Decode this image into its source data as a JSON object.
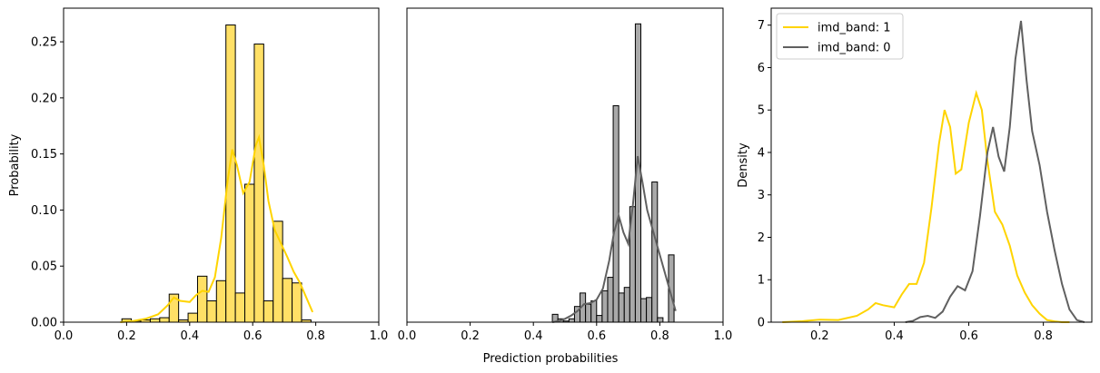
{
  "figure": {
    "xlabel": "Prediction probabilities"
  },
  "colors": {
    "band1_fill": "#ffe066",
    "band1_line": "#ffd400",
    "band0_fill": "#a9a9a9",
    "band0_line": "#606060",
    "edge": "#000000"
  },
  "chart_data": [
    {
      "type": "bar",
      "subtype": "histogram_with_kde",
      "series_name": "imd_band: 1",
      "ylabel": "Probability",
      "xlim": [
        0,
        1
      ],
      "ylim": [
        0,
        0.28
      ],
      "xticks": [
        "0.0",
        "0.2",
        "0.4",
        "0.6",
        "0.8",
        "1.0"
      ],
      "xtick_values": [
        0,
        0.2,
        0.4,
        0.6,
        0.8,
        1.0
      ],
      "yticks": [
        "0.00",
        "0.05",
        "0.10",
        "0.15",
        "0.20",
        "0.25"
      ],
      "ytick_values": [
        0,
        0.05,
        0.1,
        0.15,
        0.2,
        0.25
      ],
      "bins": [
        {
          "x0": 0.185,
          "x1": 0.215,
          "y": 0.003
        },
        {
          "x0": 0.215,
          "x1": 0.245,
          "y": 0.001
        },
        {
          "x0": 0.245,
          "x1": 0.275,
          "y": 0.002
        },
        {
          "x0": 0.275,
          "x1": 0.305,
          "y": 0.003
        },
        {
          "x0": 0.305,
          "x1": 0.335,
          "y": 0.004
        },
        {
          "x0": 0.335,
          "x1": 0.365,
          "y": 0.025
        },
        {
          "x0": 0.365,
          "x1": 0.395,
          "y": 0.002
        },
        {
          "x0": 0.395,
          "x1": 0.425,
          "y": 0.008
        },
        {
          "x0": 0.425,
          "x1": 0.455,
          "y": 0.041
        },
        {
          "x0": 0.455,
          "x1": 0.485,
          "y": 0.019
        },
        {
          "x0": 0.485,
          "x1": 0.515,
          "y": 0.037
        },
        {
          "x0": 0.515,
          "x1": 0.545,
          "y": 0.265
        },
        {
          "x0": 0.545,
          "x1": 0.575,
          "y": 0.026
        },
        {
          "x0": 0.575,
          "x1": 0.605,
          "y": 0.123
        },
        {
          "x0": 0.605,
          "x1": 0.635,
          "y": 0.248
        },
        {
          "x0": 0.635,
          "x1": 0.665,
          "y": 0.019
        },
        {
          "x0": 0.665,
          "x1": 0.695,
          "y": 0.09
        },
        {
          "x0": 0.695,
          "x1": 0.725,
          "y": 0.039
        },
        {
          "x0": 0.725,
          "x1": 0.755,
          "y": 0.035
        },
        {
          "x0": 0.755,
          "x1": 0.785,
          "y": 0.002
        }
      ],
      "kde": {
        "x": [
          0.18,
          0.22,
          0.26,
          0.3,
          0.33,
          0.35,
          0.37,
          0.4,
          0.42,
          0.44,
          0.46,
          0.48,
          0.5,
          0.52,
          0.535,
          0.55,
          0.57,
          0.59,
          0.61,
          0.62,
          0.635,
          0.65,
          0.67,
          0.69,
          0.71,
          0.73,
          0.75,
          0.77,
          0.79
        ],
        "y": [
          0.0,
          0.001,
          0.003,
          0.007,
          0.015,
          0.022,
          0.019,
          0.018,
          0.024,
          0.028,
          0.027,
          0.04,
          0.075,
          0.125,
          0.154,
          0.14,
          0.115,
          0.125,
          0.158,
          0.165,
          0.14,
          0.108,
          0.082,
          0.07,
          0.058,
          0.045,
          0.035,
          0.022,
          0.009
        ]
      }
    },
    {
      "type": "bar",
      "subtype": "histogram_with_kde",
      "series_name": "imd_band: 0",
      "xlim": [
        0,
        1
      ],
      "ylim": [
        0,
        0.28
      ],
      "xticks": [
        "0.0",
        "0.2",
        "0.4",
        "0.6",
        "0.8",
        "1.0"
      ],
      "xtick_values": [
        0,
        0.2,
        0.4,
        0.6,
        0.8,
        1.0
      ],
      "bins": [
        {
          "x0": 0.46,
          "x1": 0.4775,
          "y": 0.007
        },
        {
          "x0": 0.4775,
          "x1": 0.495,
          "y": 0.003
        },
        {
          "x0": 0.495,
          "x1": 0.5125,
          "y": 0.001
        },
        {
          "x0": 0.5125,
          "x1": 0.53,
          "y": 0.003
        },
        {
          "x0": 0.53,
          "x1": 0.5475,
          "y": 0.014
        },
        {
          "x0": 0.5475,
          "x1": 0.565,
          "y": 0.026
        },
        {
          "x0": 0.565,
          "x1": 0.5825,
          "y": 0.016
        },
        {
          "x0": 0.5825,
          "x1": 0.6,
          "y": 0.019
        },
        {
          "x0": 0.6,
          "x1": 0.6175,
          "y": 0.006
        },
        {
          "x0": 0.6175,
          "x1": 0.635,
          "y": 0.028
        },
        {
          "x0": 0.635,
          "x1": 0.6525,
          "y": 0.04
        },
        {
          "x0": 0.6525,
          "x1": 0.67,
          "y": 0.193
        },
        {
          "x0": 0.67,
          "x1": 0.6875,
          "y": 0.026
        },
        {
          "x0": 0.6875,
          "x1": 0.705,
          "y": 0.031
        },
        {
          "x0": 0.705,
          "x1": 0.7225,
          "y": 0.103
        },
        {
          "x0": 0.7225,
          "x1": 0.74,
          "y": 0.266
        },
        {
          "x0": 0.74,
          "x1": 0.7575,
          "y": 0.021
        },
        {
          "x0": 0.7575,
          "x1": 0.775,
          "y": 0.022
        },
        {
          "x0": 0.775,
          "x1": 0.7925,
          "y": 0.125
        },
        {
          "x0": 0.7925,
          "x1": 0.81,
          "y": 0.004
        },
        {
          "x0": 0.81,
          "x1": 0.8275,
          "y": 0.0
        },
        {
          "x0": 0.8275,
          "x1": 0.845,
          "y": 0.06
        }
      ],
      "kde": {
        "x": [
          0.46,
          0.48,
          0.5,
          0.52,
          0.54,
          0.56,
          0.58,
          0.6,
          0.62,
          0.64,
          0.655,
          0.67,
          0.685,
          0.7,
          0.715,
          0.73,
          0.745,
          0.76,
          0.78,
          0.8,
          0.82,
          0.84,
          0.85
        ],
        "y": [
          0.0,
          0.001,
          0.003,
          0.006,
          0.01,
          0.016,
          0.017,
          0.02,
          0.03,
          0.055,
          0.08,
          0.095,
          0.08,
          0.07,
          0.105,
          0.148,
          0.125,
          0.1,
          0.08,
          0.06,
          0.04,
          0.02,
          0.01
        ]
      }
    },
    {
      "type": "line",
      "subtype": "kde",
      "ylabel": "Density",
      "xlim": [
        0.07,
        0.93
      ],
      "ylim": [
        0,
        7.4
      ],
      "xticks": [
        "0.2",
        "0.4",
        "0.6",
        "0.8"
      ],
      "xtick_values": [
        0.2,
        0.4,
        0.6,
        0.8
      ],
      "yticks": [
        "0",
        "1",
        "2",
        "3",
        "4",
        "5",
        "6",
        "7"
      ],
      "ytick_values": [
        0,
        1,
        2,
        3,
        4,
        5,
        6,
        7
      ],
      "legend_position": "top-left",
      "series": [
        {
          "name": "imd_band: 1",
          "x": [
            0.1,
            0.15,
            0.2,
            0.25,
            0.3,
            0.33,
            0.35,
            0.37,
            0.4,
            0.42,
            0.44,
            0.46,
            0.48,
            0.5,
            0.52,
            0.535,
            0.55,
            0.565,
            0.58,
            0.6,
            0.62,
            0.635,
            0.65,
            0.67,
            0.69,
            0.71,
            0.73,
            0.75,
            0.77,
            0.79,
            0.81,
            0.83,
            0.85,
            0.87
          ],
          "y": [
            0.0,
            0.02,
            0.06,
            0.05,
            0.15,
            0.3,
            0.45,
            0.4,
            0.35,
            0.65,
            0.9,
            0.9,
            1.4,
            2.7,
            4.2,
            5.0,
            4.6,
            3.5,
            3.6,
            4.7,
            5.4,
            5.0,
            3.8,
            2.6,
            2.3,
            1.8,
            1.1,
            0.7,
            0.4,
            0.2,
            0.05,
            0.02,
            0.0,
            0.0
          ]
        },
        {
          "name": "imd_band: 0",
          "x": [
            0.43,
            0.45,
            0.47,
            0.49,
            0.51,
            0.53,
            0.55,
            0.57,
            0.59,
            0.61,
            0.63,
            0.65,
            0.665,
            0.68,
            0.695,
            0.71,
            0.725,
            0.74,
            0.755,
            0.77,
            0.79,
            0.81,
            0.83,
            0.85,
            0.87,
            0.89,
            0.91
          ],
          "y": [
            0.0,
            0.03,
            0.12,
            0.15,
            0.1,
            0.25,
            0.6,
            0.85,
            0.75,
            1.2,
            2.5,
            4.0,
            4.6,
            3.9,
            3.55,
            4.6,
            6.2,
            7.1,
            5.7,
            4.5,
            3.7,
            2.6,
            1.7,
            0.9,
            0.3,
            0.05,
            0.0
          ]
        }
      ]
    }
  ]
}
